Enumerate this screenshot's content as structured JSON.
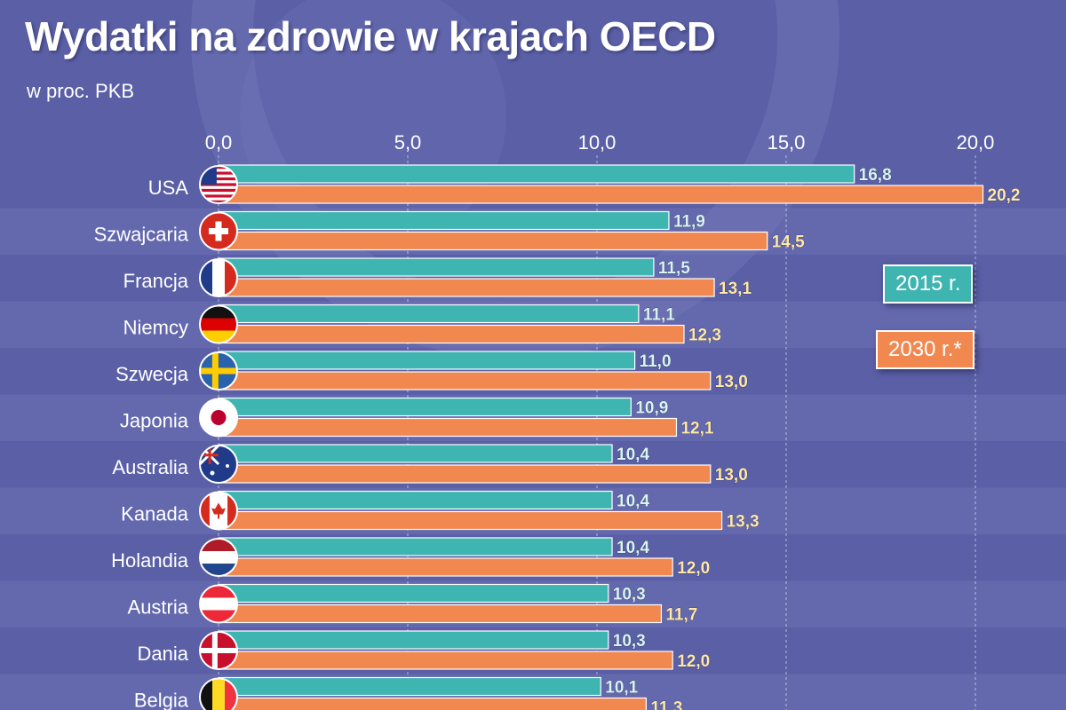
{
  "title": "Wydatki na zdrowie w krajach OECD",
  "subtitle": "w proc. PKB",
  "colors": {
    "background": "#5a5fa6",
    "band": "#6a70b4",
    "series_2015": "#3fb5b2",
    "series_2030": "#f08850",
    "label_2015": "#d9f5f2",
    "label_2030": "#ffe9a8"
  },
  "legend": {
    "items": [
      "2015 r.",
      "2030 r.*"
    ],
    "placement": "right"
  },
  "chart_data": {
    "type": "bar",
    "orientation": "horizontal",
    "categories": [
      "USA",
      "Szwajcaria",
      "Francja",
      "Niemcy",
      "Szwecja",
      "Japonia",
      "Australia",
      "Kanada",
      "Holandia",
      "Austria",
      "Dania",
      "Belgia"
    ],
    "flags": [
      "us-flag-icon",
      "ch-flag-icon",
      "fr-flag-icon",
      "de-flag-icon",
      "se-flag-icon",
      "jp-flag-icon",
      "au-flag-icon",
      "ca-flag-icon",
      "nl-flag-icon",
      "at-flag-icon",
      "dk-flag-icon",
      "be-flag-icon"
    ],
    "series": [
      {
        "name": "2015 r.",
        "values": [
          16.8,
          11.9,
          11.5,
          11.1,
          11.0,
          10.9,
          10.4,
          10.4,
          10.4,
          10.3,
          10.3,
          10.1
        ]
      },
      {
        "name": "2030 r.*",
        "values": [
          20.2,
          14.5,
          13.1,
          12.3,
          13.0,
          12.1,
          13.0,
          13.3,
          12.0,
          11.7,
          12.0,
          11.3
        ]
      }
    ],
    "value_labels": [
      [
        "16,8",
        "11,9",
        "11,5",
        "11,1",
        "11,0",
        "10,9",
        "10,4",
        "10,4",
        "10,4",
        "10,3",
        "10,3",
        "10,1"
      ],
      [
        "20,2",
        "14,5",
        "13,1",
        "12,3",
        "13,0",
        "12,1",
        "13,0",
        "13,3",
        "12,0",
        "11,7",
        "12,0",
        "11,3"
      ]
    ],
    "x_ticks": [
      0,
      5,
      10,
      15,
      20
    ],
    "x_tick_labels": [
      "0,0",
      "5,0",
      "10,0",
      "15,0",
      "20,0"
    ],
    "xlim": [
      0,
      22
    ],
    "grid": true,
    "xlabel": "",
    "ylabel": ""
  }
}
